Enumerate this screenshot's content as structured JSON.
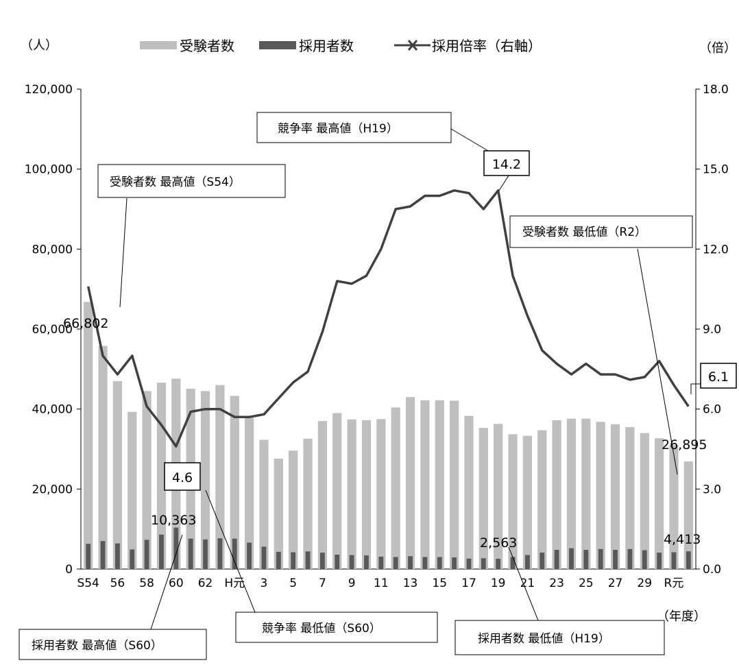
{
  "chart_data": {
    "type": "bar",
    "x": [
      "S54",
      "55",
      "56",
      "57",
      "58",
      "59",
      "60",
      "61",
      "62",
      "63",
      "H元",
      "2",
      "3",
      "4",
      "5",
      "6",
      "7",
      "8",
      "9",
      "10",
      "11",
      "12",
      "13",
      "14",
      "15",
      "16",
      "17",
      "18",
      "19",
      "20",
      "21",
      "22",
      "23",
      "24",
      "25",
      "26",
      "27",
      "28",
      "29",
      "30",
      "R元",
      "2"
    ],
    "x_tick_labels_shown": [
      "S54",
      "56",
      "58",
      "60",
      "62",
      "H元",
      "3",
      "5",
      "7",
      "9",
      "11",
      "13",
      "15",
      "17",
      "19",
      "21",
      "23",
      "25",
      "27",
      "29",
      "R元"
    ],
    "series": [
      {
        "name": "受験者数",
        "type": "bar",
        "axis": "left",
        "color": "#bfbfbf",
        "values": [
          66802,
          55800,
          47000,
          39300,
          44500,
          46600,
          47600,
          45100,
          44500,
          46000,
          43300,
          37800,
          32300,
          27600,
          29600,
          32600,
          37000,
          39000,
          37400,
          37200,
          37500,
          40400,
          43000,
          42200,
          42200,
          42100,
          38300,
          35300,
          36300,
          33700,
          33300,
          34700,
          37200,
          37600,
          37600,
          36800,
          36200,
          35500,
          34000,
          32700,
          31000,
          26895
        ]
      },
      {
        "name": "採用者数",
        "type": "bar",
        "axis": "left",
        "color": "#595959",
        "values": [
          6300,
          7000,
          6400,
          4900,
          7300,
          8600,
          10363,
          7600,
          7400,
          7700,
          7600,
          6600,
          5600,
          4300,
          4200,
          4400,
          4100,
          3600,
          3500,
          3400,
          3100,
          3000,
          3200,
          3000,
          3000,
          2900,
          2600,
          2700,
          2563,
          3000,
          3500,
          4100,
          4800,
          5200,
          4800,
          5000,
          4800,
          5000,
          4700,
          4100,
          4200,
          4413
        ]
      },
      {
        "name": "採用倍率（右軸）",
        "type": "line",
        "axis": "right",
        "color": "#404040",
        "values": [
          10.6,
          8.0,
          7.3,
          8.0,
          6.1,
          5.4,
          4.6,
          5.9,
          6.0,
          6.0,
          5.7,
          5.7,
          5.8,
          6.4,
          7.0,
          7.4,
          8.9,
          10.8,
          10.7,
          11.0,
          12.0,
          13.5,
          13.6,
          14.0,
          14.0,
          14.2,
          14.1,
          13.5,
          14.2,
          11.0,
          9.5,
          8.2,
          7.7,
          7.3,
          7.7,
          7.3,
          7.3,
          7.1,
          7.2,
          7.8,
          6.9,
          6.1
        ]
      }
    ],
    "y_left": {
      "label": "（人）",
      "range": [
        0,
        120000
      ],
      "ticks": [
        "0",
        "20,000",
        "40,000",
        "60,000",
        "80,000",
        "100,000",
        "120,000"
      ]
    },
    "y_right": {
      "label": "（倍）",
      "range": [
        0,
        18
      ],
      "ticks": [
        "0.0",
        "3.0",
        "6.0",
        "9.0",
        "12.0",
        "15.0",
        "18.0"
      ]
    },
    "x_unit": "（年度）",
    "legend_placement": "top",
    "data_labels": {
      "applicants_first": "66,802",
      "applicants_last": "26,895",
      "hires_max": "10,363",
      "hires_min": "2,563",
      "hires_last": "4,413",
      "ratio_min": "4.6",
      "ratio_max": "14.2",
      "ratio_last": "6.1"
    },
    "callouts": {
      "applicants_max": "受験者数 最高値（S54）",
      "ratio_max": "競争率 最高値（H19）",
      "applicants_min": "受験者数 最低値（R2）",
      "hires_max": "採用者数 最高値（S60）",
      "ratio_min": "競争率 最低値（S60）",
      "hires_min": "採用者数 最低値（H19）"
    }
  }
}
